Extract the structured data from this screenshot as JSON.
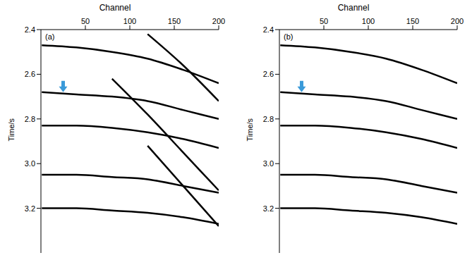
{
  "chart_data": [
    {
      "type": "line",
      "title": "(a)",
      "x_label": "Channel",
      "y_label": "Time/s",
      "xlim": [
        0,
        200
      ],
      "xticks": [
        50,
        100,
        150,
        200
      ],
      "ylim": [
        2.4,
        3.4
      ],
      "yticks": [
        2.4,
        2.6,
        2.8,
        {
          "value": 3,
          "label": "3.0"
        },
        3.2
      ],
      "grid": false,
      "x": [
        1,
        40,
        80,
        120,
        160,
        200
      ],
      "series": [
        {
          "color": "#000000",
          "values": [
            2.47,
            2.48,
            2.5,
            2.53,
            2.58,
            2.64
          ]
        },
        {
          "color": "#000000",
          "values": [
            2.68,
            2.69,
            2.7,
            2.72,
            2.76,
            2.8
          ]
        },
        {
          "color": "#000000",
          "values": [
            2.83,
            2.83,
            2.84,
            2.86,
            2.89,
            2.93
          ]
        },
        {
          "color": "#000000",
          "values": [
            3.05,
            3.05,
            3.06,
            3.07,
            3.1,
            3.13
          ]
        },
        {
          "color": "#000000",
          "values": [
            3.2,
            3.2,
            3.21,
            3.22,
            3.24,
            3.27
          ]
        },
        {
          "color": "#000000",
          "values": [
            null,
            null,
            null,
            2.42,
            2.56,
            2.72
          ]
        },
        {
          "color": "#000000",
          "values": [
            null,
            null,
            2.62,
            2.78,
            2.95,
            3.12
          ]
        },
        {
          "color": "#000000",
          "values": [
            null,
            null,
            null,
            2.92,
            3.1,
            3.28
          ]
        }
      ],
      "arrow": {
        "x": 25,
        "y": 2.68,
        "color": "#3a9ad9"
      }
    },
    {
      "type": "line",
      "title": "(b)",
      "x_label": "Channel",
      "y_label": "Time/s",
      "xlim": [
        0,
        200
      ],
      "xticks": [
        50,
        100,
        150,
        200
      ],
      "ylim": [
        2.4,
        3.4
      ],
      "yticks": [
        2.4,
        2.6,
        2.8,
        {
          "value": 3,
          "label": "3.0"
        },
        3.2
      ],
      "grid": false,
      "x": [
        1,
        40,
        80,
        120,
        160,
        200
      ],
      "series": [
        {
          "color": "#000000",
          "values": [
            2.47,
            2.48,
            2.5,
            2.53,
            2.58,
            2.64
          ]
        },
        {
          "color": "#000000",
          "values": [
            2.68,
            2.69,
            2.7,
            2.72,
            2.76,
            2.8
          ]
        },
        {
          "color": "#000000",
          "values": [
            2.83,
            2.83,
            2.84,
            2.86,
            2.89,
            2.93
          ]
        },
        {
          "color": "#000000",
          "values": [
            3.05,
            3.05,
            3.06,
            3.07,
            3.1,
            3.13
          ]
        },
        {
          "color": "#000000",
          "values": [
            3.2,
            3.2,
            3.21,
            3.22,
            3.24,
            3.27
          ]
        }
      ],
      "arrow": {
        "x": 25,
        "y": 2.68,
        "color": "#3a9ad9"
      }
    }
  ]
}
